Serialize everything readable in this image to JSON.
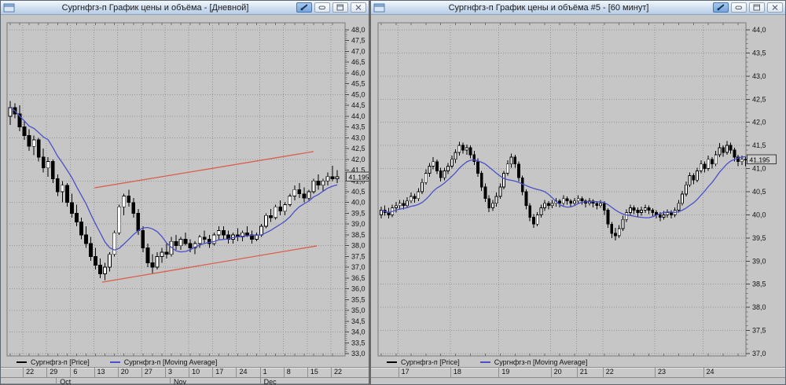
{
  "window": {
    "panels": [
      {
        "id": "daily",
        "title": "Сургнфгз-п График цены и объёма - [Дневной]"
      },
      {
        "id": "hourly",
        "title": "Сургнфгз-п График цены и объёма #5 - [60 минут]"
      }
    ],
    "titlebar_controls": [
      "link-tool",
      "minimize",
      "maximize",
      "close"
    ]
  },
  "legend": {
    "price_label": "Сургнфгз-п [Price]",
    "ma_label": "Сургнфгз-п [Moving Average]",
    "price_color": "#000000",
    "ma_color": "#4a50c8"
  },
  "colors": {
    "panel_bg": "#c6c6c6",
    "grid": "#979797",
    "candle_up": "#ffffff",
    "candle_down": "#000000",
    "trendline": "#d95f4f",
    "ma_line": "#4a50c8"
  },
  "chart_data": [
    {
      "type": "candlestick",
      "position": "left",
      "title": "Сургнфгз-п График цены и объёма - [Дневной]",
      "instrument": "Сургнфгз-п",
      "timeframe": "Дневной",
      "series": [
        {
          "name": "Сургнфгз-п [Price]",
          "color": "#000000"
        },
        {
          "name": "Сургнфгз-п [Moving Average]",
          "color": "#4a50c8",
          "period": 9
        }
      ],
      "y_axis": {
        "min": 33.0,
        "max": 48.0,
        "label_step": 0.5,
        "grid_step": 1.0,
        "decimal": "comma"
      },
      "last_price": 41.195,
      "last_price_label": "41,195",
      "x_ticks": {
        "indices": [
          3,
          8,
          13,
          18,
          23,
          28,
          33,
          38,
          43,
          48,
          53,
          58,
          63,
          68
        ],
        "labels": [
          "22",
          "29",
          "6",
          "13",
          "20",
          "27",
          "3",
          "10",
          "17",
          "24",
          "1",
          "8",
          "15",
          "22"
        ]
      },
      "month_labels": [
        {
          "index": 10,
          "label": "Oct"
        },
        {
          "index": 34,
          "label": "Nov"
        },
        {
          "index": 53,
          "label": "Dec"
        }
      ],
      "trendlines": [
        {
          "i1": 17.8,
          "p1": 40.68,
          "i2": 64.0,
          "p2": 42.36,
          "color": "#d95f4f"
        },
        {
          "i1": 19.4,
          "p1": 36.31,
          "i2": 64.7,
          "p2": 37.99,
          "color": "#d95f4f"
        }
      ],
      "candles_ohlc": [
        [
          44.0,
          44.7,
          43.6,
          44.4
        ],
        [
          44.4,
          44.6,
          43.9,
          44.1
        ],
        [
          44.1,
          44.5,
          43.3,
          43.5
        ],
        [
          43.5,
          43.8,
          42.9,
          43.1
        ],
        [
          43.1,
          43.4,
          42.4,
          42.6
        ],
        [
          42.6,
          43.1,
          42.2,
          42.9
        ],
        [
          42.9,
          43.0,
          41.9,
          42.1
        ],
        [
          42.1,
          42.5,
          41.4,
          41.6
        ],
        [
          41.6,
          42.1,
          41.2,
          41.9
        ],
        [
          41.9,
          42.0,
          40.9,
          41.1
        ],
        [
          41.1,
          41.3,
          40.3,
          40.5
        ],
        [
          40.5,
          41.0,
          40.0,
          40.8
        ],
        [
          40.8,
          40.9,
          39.8,
          40.0
        ],
        [
          40.0,
          40.4,
          39.3,
          39.5
        ],
        [
          39.5,
          39.9,
          38.9,
          39.1
        ],
        [
          39.1,
          39.3,
          38.3,
          38.5
        ],
        [
          38.5,
          38.9,
          37.9,
          38.1
        ],
        [
          38.1,
          38.4,
          37.3,
          37.5
        ],
        [
          37.5,
          37.9,
          36.9,
          37.1
        ],
        [
          37.1,
          37.4,
          36.5,
          36.7
        ],
        [
          36.7,
          37.2,
          36.4,
          37.0
        ],
        [
          37.0,
          37.7,
          36.8,
          37.6
        ],
        [
          37.6,
          38.7,
          37.5,
          38.6
        ],
        [
          38.6,
          39.9,
          38.5,
          39.8
        ],
        [
          39.8,
          40.4,
          39.4,
          40.3
        ],
        [
          40.3,
          40.6,
          39.8,
          40.0
        ],
        [
          40.0,
          40.2,
          39.3,
          39.5
        ],
        [
          39.5,
          39.7,
          38.5,
          38.7
        ],
        [
          38.7,
          38.9,
          37.7,
          37.9
        ],
        [
          37.9,
          38.1,
          37.0,
          37.2
        ],
        [
          37.2,
          37.6,
          36.7,
          37.0
        ],
        [
          37.0,
          37.7,
          36.9,
          37.5
        ],
        [
          37.5,
          37.9,
          37.2,
          37.7
        ],
        [
          37.7,
          38.1,
          37.4,
          37.6
        ],
        [
          37.6,
          38.4,
          37.5,
          38.2
        ],
        [
          38.2,
          38.5,
          37.8,
          38.0
        ],
        [
          38.0,
          38.4,
          37.8,
          38.3
        ],
        [
          38.3,
          38.6,
          38.0,
          38.1
        ],
        [
          38.1,
          38.3,
          37.7,
          37.9
        ],
        [
          37.9,
          38.2,
          37.6,
          38.1
        ],
        [
          38.1,
          38.5,
          37.9,
          38.4
        ],
        [
          38.4,
          38.7,
          38.1,
          38.3
        ],
        [
          38.3,
          38.5,
          37.9,
          38.1
        ],
        [
          38.1,
          38.6,
          38.0,
          38.5
        ],
        [
          38.5,
          38.9,
          38.3,
          38.7
        ],
        [
          38.7,
          38.9,
          38.3,
          38.5
        ],
        [
          38.5,
          38.7,
          38.1,
          38.3
        ],
        [
          38.3,
          38.6,
          38.1,
          38.5
        ],
        [
          38.5,
          38.8,
          38.2,
          38.4
        ],
        [
          38.4,
          38.7,
          38.2,
          38.6
        ],
        [
          38.6,
          38.9,
          38.4,
          38.5
        ],
        [
          38.5,
          38.7,
          38.1,
          38.3
        ],
        [
          38.3,
          38.6,
          38.2,
          38.5
        ],
        [
          38.5,
          39.0,
          38.4,
          38.9
        ],
        [
          38.9,
          39.5,
          38.8,
          39.4
        ],
        [
          39.4,
          39.7,
          39.1,
          39.3
        ],
        [
          39.3,
          39.9,
          39.2,
          39.8
        ],
        [
          39.8,
          40.1,
          39.4,
          39.6
        ],
        [
          39.6,
          40.0,
          39.4,
          39.9
        ],
        [
          39.9,
          40.4,
          39.8,
          40.3
        ],
        [
          40.3,
          40.8,
          40.1,
          40.6
        ],
        [
          40.6,
          40.9,
          40.2,
          40.4
        ],
        [
          40.4,
          40.7,
          40.0,
          40.2
        ],
        [
          40.2,
          40.6,
          40.1,
          40.5
        ],
        [
          40.5,
          41.1,
          40.4,
          41.0
        ],
        [
          41.0,
          41.3,
          40.6,
          40.8
        ],
        [
          40.8,
          41.1,
          40.5,
          41.0
        ],
        [
          41.0,
          41.4,
          40.8,
          41.2
        ],
        [
          41.2,
          41.7,
          41.0,
          41.1
        ],
        [
          41.1,
          41.5,
          40.9,
          41.195
        ]
      ]
    },
    {
      "type": "candlestick",
      "position": "right",
      "title": "Сургнфгз-п График цены и объёма #5 - [60 минут]",
      "instrument": "Сургнфгз-п",
      "timeframe": "60 минут",
      "series": [
        {
          "name": "Сургнфгз-п [Price]",
          "color": "#000000"
        },
        {
          "name": "Сургнфгз-п [Moving Average]",
          "color": "#4a50c8",
          "period": 12
        }
      ],
      "y_axis": {
        "min": 37.0,
        "max": 44.0,
        "label_step": 0.5,
        "grid_step": 0.5,
        "decimal": "comma"
      },
      "last_price": 41.195,
      "last_price_label": "41,195",
      "x_ticks": {
        "indices": [
          5,
          19,
          32,
          46,
          53,
          60,
          74,
          87
        ],
        "labels": [
          "17",
          "18",
          "19",
          "20",
          "21",
          "22",
          "23",
          "24"
        ]
      },
      "month_labels": [],
      "trendlines": [],
      "candles_ohlc": [
        [
          40.0,
          40.18,
          39.92,
          40.1
        ],
        [
          40.1,
          40.2,
          39.98,
          40.05
        ],
        [
          40.05,
          40.15,
          39.92,
          40.0
        ],
        [
          40.0,
          40.22,
          39.95,
          40.15
        ],
        [
          40.15,
          40.28,
          40.05,
          40.2
        ],
        [
          40.2,
          40.32,
          40.12,
          40.25
        ],
        [
          40.25,
          40.32,
          40.12,
          40.2
        ],
        [
          40.2,
          40.38,
          40.15,
          40.3
        ],
        [
          40.3,
          40.48,
          40.25,
          40.4
        ],
        [
          40.4,
          40.46,
          40.26,
          40.35
        ],
        [
          40.35,
          40.58,
          40.3,
          40.5
        ],
        [
          40.5,
          40.78,
          40.45,
          40.7
        ],
        [
          40.7,
          40.98,
          40.65,
          40.9
        ],
        [
          40.9,
          41.12,
          40.82,
          41.05
        ],
        [
          41.05,
          41.25,
          40.98,
          41.15
        ],
        [
          41.15,
          41.2,
          40.88,
          40.95
        ],
        [
          40.95,
          41.02,
          40.72,
          40.8
        ],
        [
          40.8,
          41.02,
          40.75,
          40.95
        ],
        [
          40.95,
          41.12,
          40.88,
          41.05
        ],
        [
          41.05,
          41.28,
          41.0,
          41.2
        ],
        [
          41.2,
          41.42,
          41.12,
          41.35
        ],
        [
          41.35,
          41.58,
          41.28,
          41.5
        ],
        [
          41.5,
          41.56,
          41.32,
          41.4
        ],
        [
          41.4,
          41.52,
          41.3,
          41.45
        ],
        [
          41.45,
          41.5,
          41.22,
          41.3
        ],
        [
          41.3,
          41.38,
          41.08,
          41.15
        ],
        [
          41.15,
          41.22,
          40.82,
          40.9
        ],
        [
          40.9,
          40.95,
          40.52,
          40.6
        ],
        [
          40.6,
          40.68,
          40.28,
          40.35
        ],
        [
          40.35,
          40.42,
          40.06,
          40.15
        ],
        [
          40.15,
          40.32,
          40.08,
          40.25
        ],
        [
          40.25,
          40.48,
          40.18,
          40.4
        ],
        [
          40.4,
          40.68,
          40.35,
          40.6
        ],
        [
          40.6,
          40.95,
          40.55,
          40.9
        ],
        [
          40.9,
          41.18,
          40.85,
          41.1
        ],
        [
          41.1,
          41.32,
          41.02,
          41.25
        ],
        [
          41.25,
          41.3,
          41.02,
          41.1
        ],
        [
          41.1,
          41.15,
          40.72,
          40.8
        ],
        [
          40.8,
          40.85,
          40.42,
          40.5
        ],
        [
          40.5,
          40.55,
          40.12,
          40.2
        ],
        [
          40.2,
          40.25,
          39.86,
          39.95
        ],
        [
          39.95,
          40.02,
          39.72,
          39.8
        ],
        [
          39.8,
          40.06,
          39.75,
          40.0
        ],
        [
          40.0,
          40.22,
          39.94,
          40.15
        ],
        [
          40.15,
          40.32,
          40.08,
          40.25
        ],
        [
          40.25,
          40.3,
          40.12,
          40.2
        ],
        [
          40.2,
          40.32,
          40.14,
          40.25
        ],
        [
          40.25,
          40.36,
          40.18,
          40.3
        ],
        [
          40.3,
          40.34,
          40.16,
          40.25
        ],
        [
          40.25,
          40.42,
          40.2,
          40.35
        ],
        [
          40.35,
          40.4,
          40.22,
          40.3
        ],
        [
          40.3,
          40.34,
          40.16,
          40.25
        ],
        [
          40.25,
          40.36,
          40.2,
          40.3
        ],
        [
          40.3,
          40.42,
          40.25,
          40.35
        ],
        [
          40.35,
          40.4,
          40.22,
          40.3
        ],
        [
          40.3,
          40.34,
          40.16,
          40.25
        ],
        [
          40.25,
          40.36,
          40.2,
          40.3
        ],
        [
          40.3,
          40.34,
          40.16,
          40.25
        ],
        [
          40.25,
          40.3,
          40.12,
          40.2
        ],
        [
          40.2,
          40.32,
          40.15,
          40.25
        ],
        [
          40.25,
          40.3,
          40.0,
          40.1
        ],
        [
          40.1,
          40.14,
          39.72,
          39.8
        ],
        [
          39.8,
          39.85,
          39.5,
          39.6
        ],
        [
          39.6,
          39.72,
          39.45,
          39.55
        ],
        [
          39.55,
          39.78,
          39.5,
          39.7
        ],
        [
          39.7,
          39.98,
          39.65,
          39.9
        ],
        [
          39.9,
          40.12,
          39.85,
          40.05
        ],
        [
          40.05,
          40.22,
          39.98,
          40.15
        ],
        [
          40.15,
          40.2,
          40.02,
          40.1
        ],
        [
          40.1,
          40.16,
          39.96,
          40.05
        ],
        [
          40.05,
          40.18,
          39.98,
          40.1
        ],
        [
          40.1,
          40.22,
          40.04,
          40.15
        ],
        [
          40.15,
          40.2,
          40.02,
          40.1
        ],
        [
          40.1,
          40.14,
          39.96,
          40.05
        ],
        [
          40.05,
          40.1,
          39.92,
          40.0
        ],
        [
          40.0,
          40.06,
          39.86,
          39.95
        ],
        [
          39.95,
          40.08,
          39.9,
          40.0
        ],
        [
          40.0,
          40.12,
          39.94,
          40.05
        ],
        [
          40.05,
          40.1,
          39.92,
          40.0
        ],
        [
          40.0,
          40.16,
          39.95,
          40.1
        ],
        [
          40.1,
          40.32,
          40.05,
          40.25
        ],
        [
          40.25,
          40.52,
          40.2,
          40.45
        ],
        [
          40.45,
          40.72,
          40.4,
          40.65
        ],
        [
          40.65,
          40.92,
          40.6,
          40.85
        ],
        [
          40.85,
          40.9,
          40.66,
          40.75
        ],
        [
          40.75,
          41.02,
          40.7,
          40.95
        ],
        [
          40.95,
          41.18,
          40.9,
          41.1
        ],
        [
          41.1,
          41.15,
          40.92,
          41.0
        ],
        [
          41.0,
          41.28,
          40.95,
          41.2
        ],
        [
          41.2,
          41.25,
          41.0,
          41.1
        ],
        [
          41.1,
          41.38,
          41.05,
          41.3
        ],
        [
          41.3,
          41.55,
          41.25,
          41.45
        ],
        [
          41.45,
          41.5,
          41.26,
          41.35
        ],
        [
          41.35,
          41.6,
          41.3,
          41.5
        ],
        [
          41.5,
          41.56,
          41.32,
          41.4
        ],
        [
          41.4,
          41.45,
          41.15,
          41.25
        ],
        [
          41.25,
          41.3,
          41.05,
          41.15
        ],
        [
          41.15,
          41.28,
          41.08,
          41.2
        ],
        [
          41.2,
          41.26,
          41.05,
          41.195
        ]
      ]
    }
  ]
}
